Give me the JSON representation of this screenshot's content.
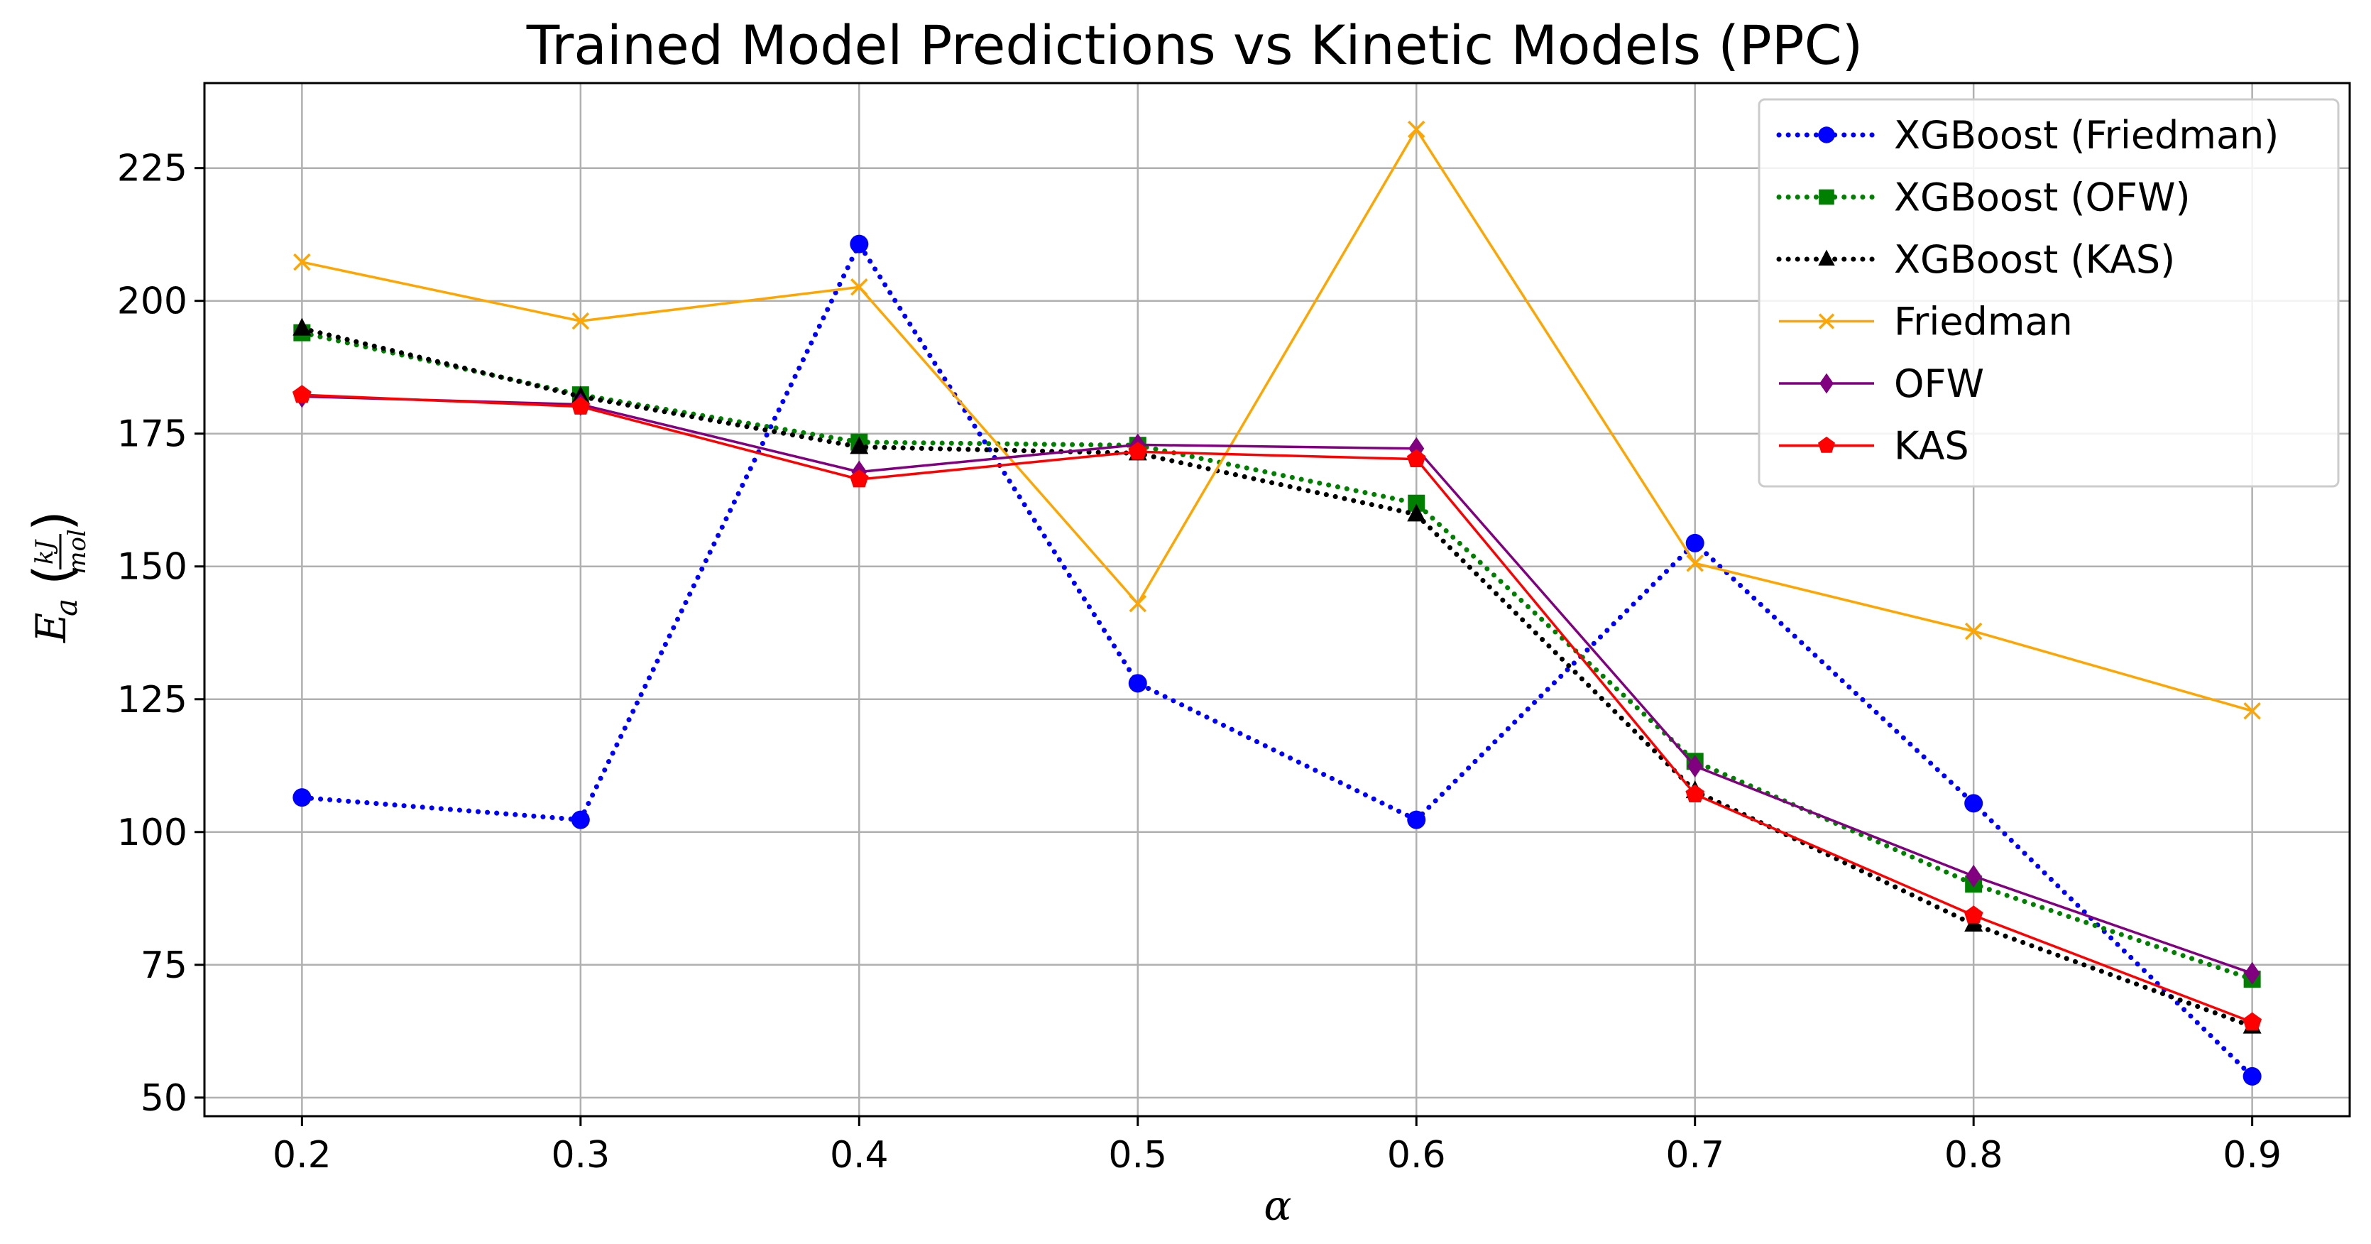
{
  "chart_data": {
    "type": "line",
    "title": "Trained Model Predictions vs Kinetic Models (PPC)",
    "xlabel": "α",
    "ylabel": {
      "main": "E",
      "subscript": "a",
      "unit_numerator": "kJ",
      "unit_denominator": "mol"
    },
    "x": [
      0.2,
      0.3,
      0.4,
      0.5,
      0.6,
      0.7,
      0.8,
      0.9
    ],
    "x_tick_labels": [
      "0.2",
      "0.3",
      "0.4",
      "0.5",
      "0.6",
      "0.7",
      "0.8",
      "0.9"
    ],
    "xlim": [
      0.165,
      0.935
    ],
    "y_ticks": [
      50,
      75,
      100,
      125,
      150,
      175,
      200,
      225
    ],
    "y_tick_labels": [
      "50",
      "75",
      "100",
      "125",
      "150",
      "175",
      "200",
      "225"
    ],
    "ylim": [
      46.5,
      241
    ],
    "grid": true,
    "legend_position": "top-right",
    "series": [
      {
        "name": "XGBoost (Friedman)",
        "color": "#0000ff",
        "linestyle": "dotted",
        "marker": "circle",
        "values": [
          106.5,
          102.3,
          210.7,
          128.0,
          102.3,
          154.4,
          105.4,
          54.0
        ]
      },
      {
        "name": "XGBoost (OFW)",
        "color": "#008000",
        "linestyle": "dotted",
        "marker": "square",
        "values": [
          194.0,
          182.3,
          173.4,
          172.8,
          161.9,
          113.3,
          90.2,
          72.3
        ]
      },
      {
        "name": "XGBoost (KAS)",
        "color": "#000000",
        "linestyle": "dotted",
        "marker": "triangle",
        "values": [
          194.8,
          182.0,
          172.5,
          171.3,
          159.8,
          107.7,
          82.6,
          63.4
        ]
      },
      {
        "name": "Friedman",
        "color": "#ffa500",
        "linestyle": "solid",
        "marker": "x",
        "values": [
          207.3,
          196.2,
          202.6,
          143.0,
          232.3,
          150.6,
          137.8,
          122.8
        ]
      },
      {
        "name": "OFW",
        "color": "#800080",
        "linestyle": "solid",
        "marker": "diamond",
        "values": [
          182.0,
          180.5,
          167.8,
          172.9,
          172.2,
          112.4,
          91.7,
          73.4
        ]
      },
      {
        "name": "KAS",
        "color": "#ff0000",
        "linestyle": "solid",
        "marker": "pentagon",
        "values": [
          182.3,
          180.1,
          166.4,
          171.6,
          170.2,
          107.1,
          84.3,
          64.2
        ]
      }
    ]
  }
}
